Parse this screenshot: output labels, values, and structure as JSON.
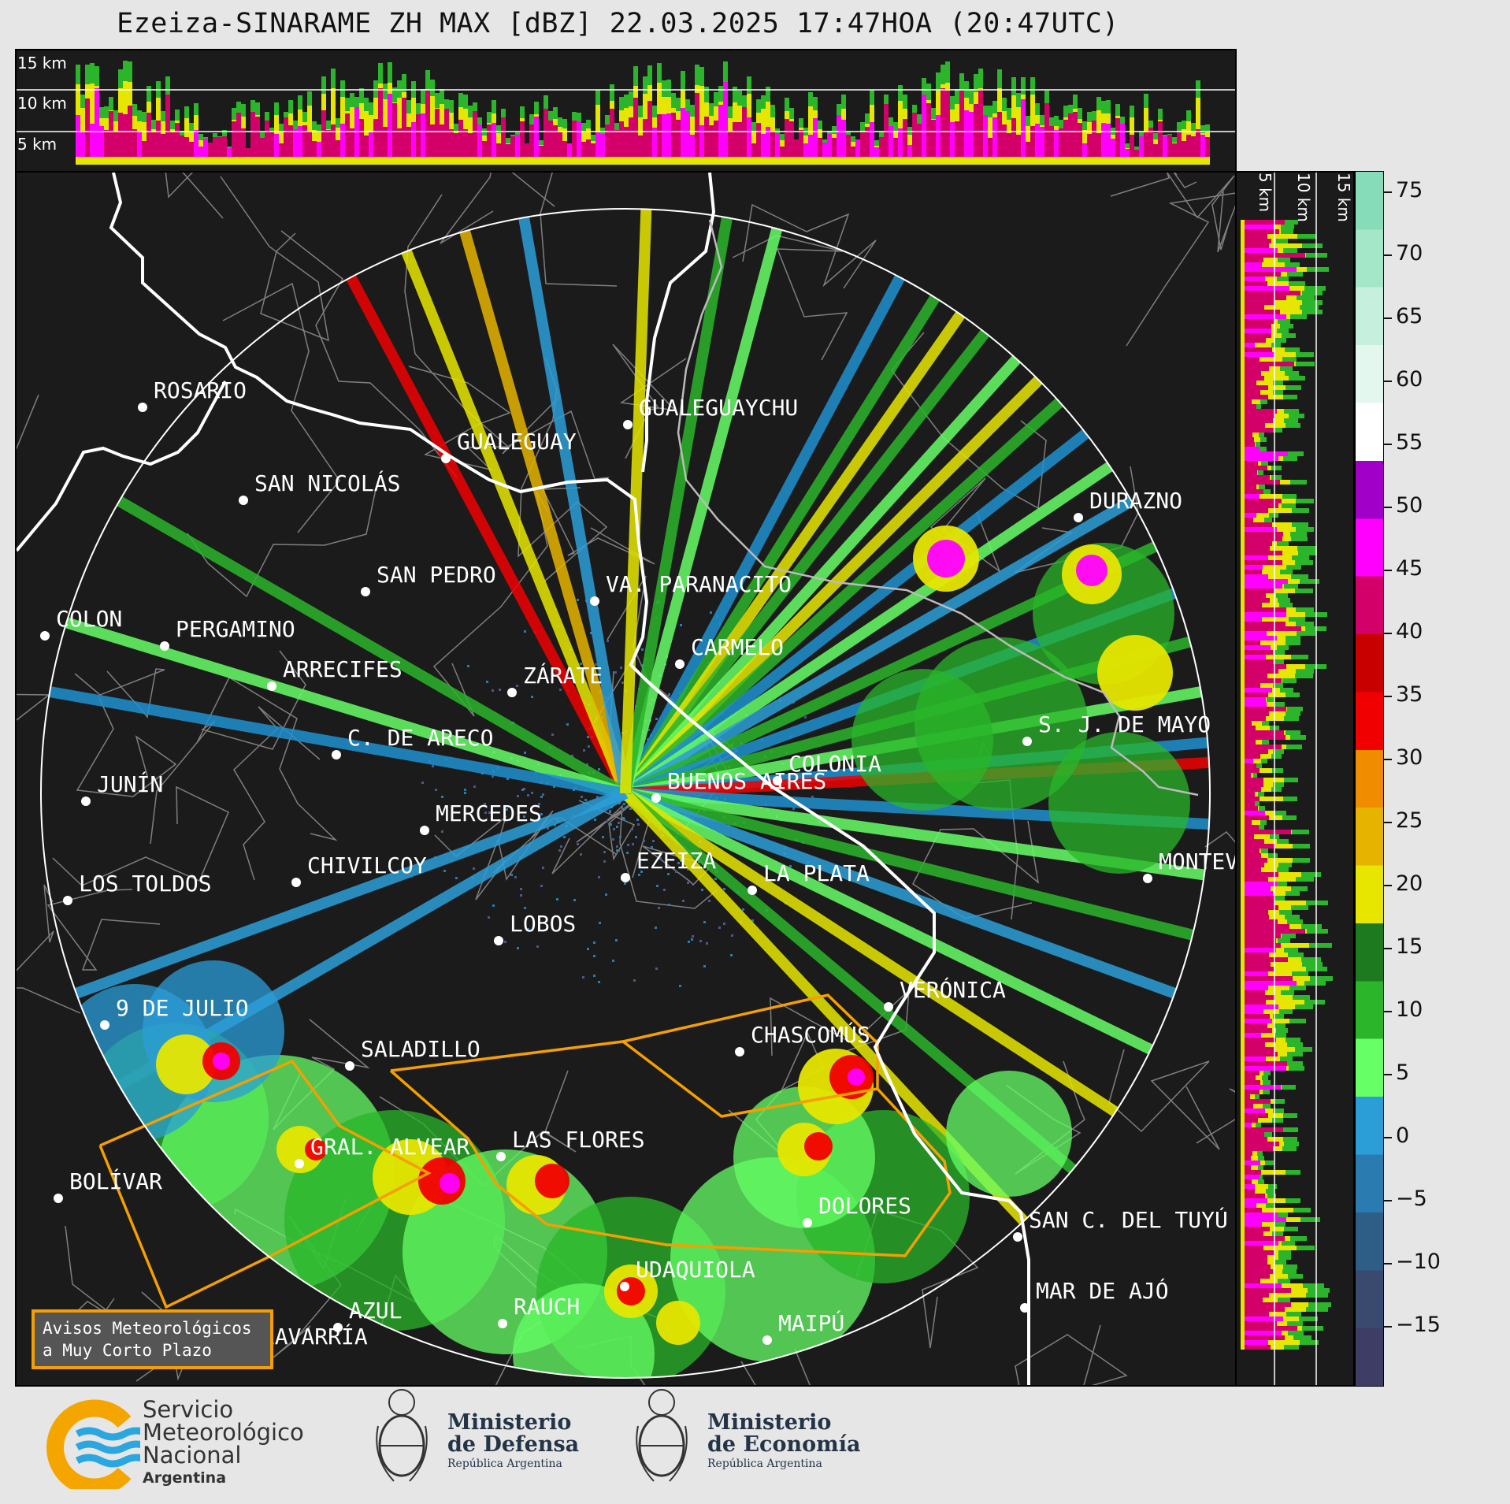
{
  "title": "Ezeiza-SINARAME ZH MAX [dBZ] 22.03.2025 17:47HOA (20:47UTC)",
  "top_profile": {
    "height_labels": [
      "15 km",
      "10 km",
      "5 km"
    ]
  },
  "side_profile": {
    "height_labels": [
      "5 km",
      "10 km",
      "15 km"
    ]
  },
  "colorbar": {
    "unit": "dBZ",
    "ticks": [
      "75",
      "70",
      "65",
      "60",
      "55",
      "50",
      "45",
      "40",
      "35",
      "30",
      "25",
      "20",
      "15",
      "10",
      "5",
      "0",
      "−5",
      "−10",
      "−15"
    ],
    "colors": [
      "#86dcb8",
      "#a3e6c8",
      "#c6f0dd",
      "#e4f7ee",
      "#ffffff",
      "#a000c8",
      "#ff00ff",
      "#d4006a",
      "#c80000",
      "#f00000",
      "#f08c00",
      "#e6b400",
      "#e6e600",
      "#1e7a1e",
      "#2ab52a",
      "#66ff66",
      "#2b9ed8",
      "#2a7cb0",
      "#2e5d85",
      "#394a6e",
      "#3d3d66"
    ]
  },
  "cities": [
    {
      "name": "ROSARIO"
    },
    {
      "name": "GUALEGUAYCHU"
    },
    {
      "name": "GUALEGUAY"
    },
    {
      "name": "SAN NICOLÁS"
    },
    {
      "name": "DURAZNO"
    },
    {
      "name": "SAN PEDRO"
    },
    {
      "name": "VA. PARANACITO"
    },
    {
      "name": "COLON"
    },
    {
      "name": "PERGAMINO"
    },
    {
      "name": "CARMELO"
    },
    {
      "name": "ARRECIFES"
    },
    {
      "name": "ZÁRATE"
    },
    {
      "name": "S. J. DE MAYO"
    },
    {
      "name": "C. DE ARECO"
    },
    {
      "name": "COLONIA"
    },
    {
      "name": "JUNÍN"
    },
    {
      "name": "BUENOS AIRES"
    },
    {
      "name": "MERCEDES"
    },
    {
      "name": "EZEIZA"
    },
    {
      "name": "MONTEVIDEO"
    },
    {
      "name": "CHIVILCOY"
    },
    {
      "name": "LA PLATA"
    },
    {
      "name": "LOS TOLDOS"
    },
    {
      "name": "LOBOS"
    },
    {
      "name": "VERÓNICA"
    },
    {
      "name": "9 DE JULIO"
    },
    {
      "name": "CHASCOMÚS"
    },
    {
      "name": "SALADILLO"
    },
    {
      "name": "GRAL. ALVEAR"
    },
    {
      "name": "LAS FLORES"
    },
    {
      "name": "BOLÍVAR"
    },
    {
      "name": "DOLORES"
    },
    {
      "name": "SAN C. DEL TUYÚ"
    },
    {
      "name": "UDAQUIOLA"
    },
    {
      "name": "MAR DE AJÓ"
    },
    {
      "name": "AZUL"
    },
    {
      "name": "RAUCH"
    },
    {
      "name": "OLAVARRÍA"
    },
    {
      "name": "MAIPÚ"
    }
  ],
  "legend": {
    "line1": "Avisos Meteorológicos",
    "line2": "a Muy Corto Plazo",
    "border_color": "#f59f00"
  },
  "logos": {
    "smn": {
      "line1": "Servicio",
      "line2": "Meteorológico",
      "line3": "Nacional",
      "line4": "Argentina"
    },
    "defensa": {
      "line1": "Ministerio",
      "line2": "de Defensa",
      "line3": "República Argentina"
    },
    "economia": {
      "line1": "Ministerio",
      "line2": "de Economía",
      "line3": "República Argentina"
    }
  }
}
